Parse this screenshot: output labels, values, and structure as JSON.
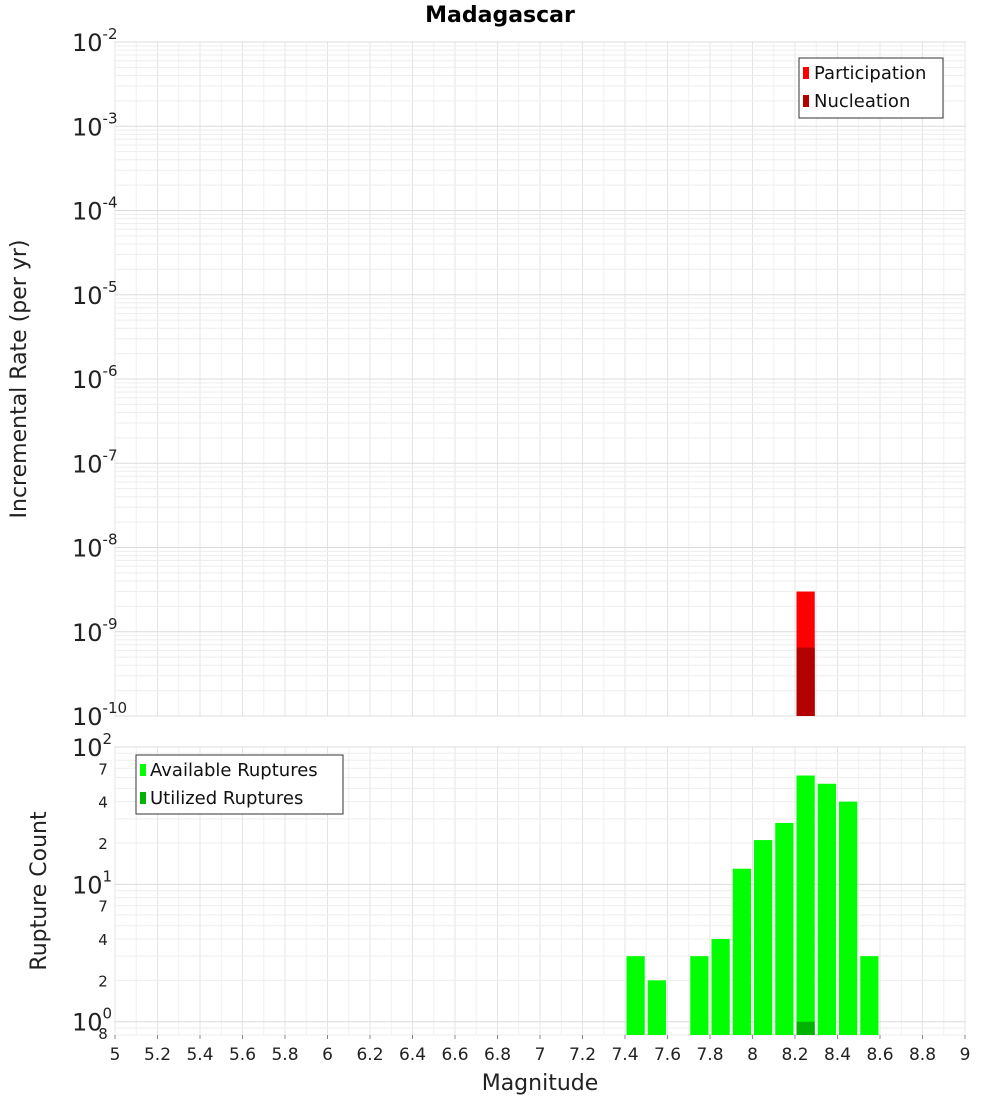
{
  "chart_data": [
    {
      "type": "bar",
      "title": "Madagascar",
      "xlabel": "",
      "ylabel": "Incremental Rate (per yr)",
      "yscale": "log",
      "ylim": [
        1e-10,
        0.01
      ],
      "xlim": [
        5,
        9
      ],
      "bin_width": 0.1,
      "y_ticks": [
        {
          "base": "10",
          "exp": "-2",
          "value": 0.01
        },
        {
          "base": "10",
          "exp": "-3",
          "value": 0.001
        },
        {
          "base": "10",
          "exp": "-4",
          "value": 0.0001
        },
        {
          "base": "10",
          "exp": "-5",
          "value": 1e-05
        },
        {
          "base": "10",
          "exp": "-6",
          "value": 1e-06
        },
        {
          "base": "10",
          "exp": "-7",
          "value": 1e-07
        },
        {
          "base": "10",
          "exp": "-8",
          "value": 1e-08
        },
        {
          "base": "10",
          "exp": "-9",
          "value": 1e-09
        },
        {
          "base": "10",
          "exp": "-10",
          "value": 1e-10
        }
      ],
      "legend_position": "top-right",
      "grid": true,
      "series": [
        {
          "name": "Participation",
          "color": "#ff0000",
          "x": [
            8.25
          ],
          "values": [
            3e-09
          ]
        },
        {
          "name": "Nucleation",
          "color": "#b30000",
          "x": [
            8.25
          ],
          "values": [
            6.5e-10
          ]
        }
      ]
    },
    {
      "type": "bar",
      "title": "",
      "xlabel": "Magnitude",
      "ylabel": "Rupture Count",
      "yscale": "log",
      "ylim": [
        0.8,
        100
      ],
      "xlim": [
        5,
        9
      ],
      "bin_width": 0.1,
      "x_ticks": [
        "5",
        "5.2",
        "5.4",
        "5.6",
        "5.8",
        "6",
        "6.2",
        "6.4",
        "6.6",
        "6.8",
        "7",
        "7.2",
        "7.4",
        "7.6",
        "7.8",
        "8",
        "8.2",
        "8.4",
        "8.6",
        "8.8",
        "9"
      ],
      "y_major_ticks": [
        {
          "base": "10",
          "exp": "2",
          "value": 100
        },
        {
          "base": "10",
          "exp": "1",
          "value": 10
        },
        {
          "base": "10",
          "exp": "0",
          "value": 1
        }
      ],
      "y_minor_ticks": [
        {
          "label": "7",
          "value": 70
        },
        {
          "label": "4",
          "value": 40
        },
        {
          "label": "2",
          "value": 20
        },
        {
          "label": "7",
          "value": 7
        },
        {
          "label": "4",
          "value": 4
        },
        {
          "label": "2",
          "value": 2
        },
        {
          "label": "8",
          "value": 0.8
        }
      ],
      "legend_position": "top-left",
      "grid": true,
      "series": [
        {
          "name": "Available Ruptures",
          "color": "#00ff00",
          "x": [
            7.45,
            7.55,
            7.75,
            7.85,
            7.95,
            8.05,
            8.15,
            8.25,
            8.35,
            8.45,
            8.55
          ],
          "values": [
            3,
            2,
            3,
            4,
            13,
            21,
            28,
            62,
            54,
            40,
            3
          ]
        },
        {
          "name": "Utilized Ruptures",
          "color": "#00b300",
          "x": [
            8.25
          ],
          "values": [
            1
          ]
        }
      ]
    }
  ]
}
